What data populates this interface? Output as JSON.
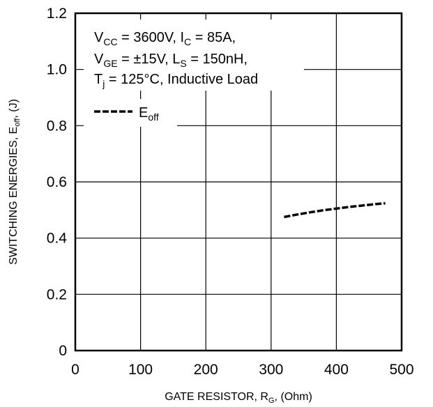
{
  "chart_data": {
    "type": "line",
    "xlim": [
      0,
      500
    ],
    "ylim": [
      0,
      1.2
    ],
    "x_ticks": [
      "0",
      "100",
      "200",
      "300",
      "400",
      "500"
    ],
    "y_ticks": [
      "0",
      "0.2",
      "0.4",
      "0.6",
      "0.8",
      "1.0",
      "1.2"
    ],
    "xlabel": {
      "main": "GATE RESISTOR, R",
      "sub": "G",
      "tail": ", (Ohm)"
    },
    "ylabel": {
      "main": "SWITCHING ENERGIES, E",
      "sub": "off",
      "tail": ", (J)"
    },
    "grid": true,
    "conditions": {
      "line1": {
        "v": "V",
        "v_sub": "CC",
        "v_val": " = 3600V, I",
        "i_sub": "C",
        "i_val": " = 85A,"
      },
      "line2": {
        "v": "V",
        "v_sub": "GE",
        "v_val": " = ±15V, L",
        "l_sub": "S",
        "l_val": " = 150nH,"
      },
      "line3": {
        "t": "T",
        "t_sub": "j",
        "t_val": " = 125°C, Inductive Load"
      }
    },
    "legend_position": "top-left",
    "series": [
      {
        "name": "E",
        "name_sub": "off",
        "style": "dashed",
        "color": "#000000",
        "x": [
          320,
          340,
          360,
          380,
          400,
          420,
          440,
          460,
          475
        ],
        "y": [
          0.475,
          0.484,
          0.492,
          0.499,
          0.505,
          0.511,
          0.516,
          0.521,
          0.524
        ]
      }
    ]
  }
}
